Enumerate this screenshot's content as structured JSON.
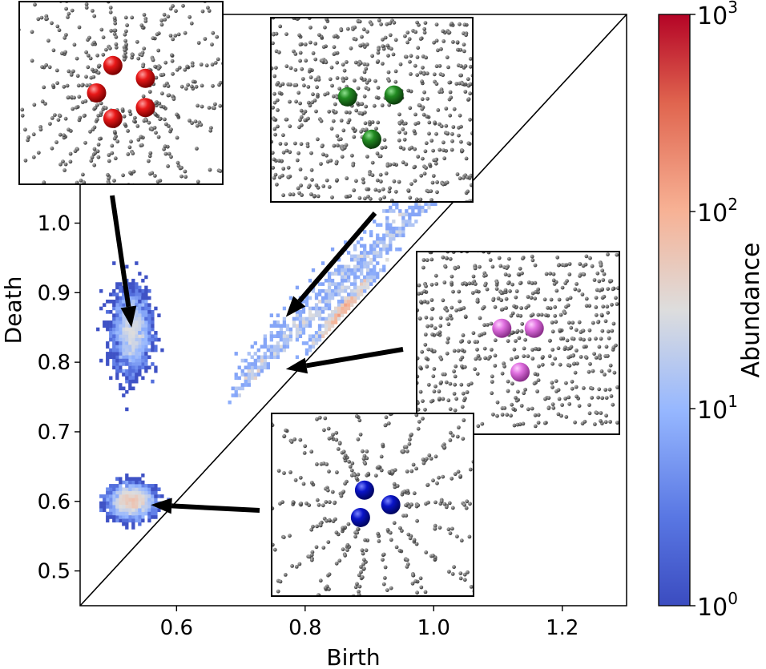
{
  "chart_data": {
    "type": "heatmap",
    "description_kind": "persistence diagram (2D histogram of birth/death pairs)",
    "xlabel": "Birth",
    "ylabel": "Death",
    "xlim": [
      0.45,
      1.3
    ],
    "ylim": [
      0.45,
      1.3
    ],
    "xticks": [
      0.6,
      0.8,
      1.0,
      1.2
    ],
    "xtick_labels": [
      "0.6",
      "0.8",
      "1.0",
      "1.2"
    ],
    "yticks": [
      0.5,
      0.6,
      0.7,
      0.8,
      0.9,
      1.0
    ],
    "ytick_labels": [
      "0.5",
      "0.6",
      "0.7",
      "0.8",
      "0.9",
      "1.0"
    ],
    "diagonal": true,
    "grid": false,
    "colorbar": {
      "label": "Abundance",
      "scale": "log",
      "range": [
        1,
        1000
      ],
      "ticks": [
        {
          "base": "10",
          "exp": "0",
          "value": 1
        },
        {
          "base": "10",
          "exp": "1",
          "value": 10
        },
        {
          "base": "10",
          "exp": "2",
          "value": 100
        },
        {
          "base": "10",
          "exp": "3",
          "value": 1000
        }
      ],
      "colormap": "coolwarm"
    },
    "clusters": [
      {
        "id": "A",
        "birth_center": 0.53,
        "death_center": 0.845,
        "birth_spread": 0.025,
        "death_spread": 0.05,
        "peak_abundance": 150
      },
      {
        "id": "B",
        "birth_center": 0.53,
        "death_center": 0.6,
        "birth_spread": 0.03,
        "death_spread": 0.02,
        "peak_abundance": 200
      },
      {
        "id": "C",
        "birth_center": 0.85,
        "death_center": 0.87,
        "birth_spread": 0.09,
        "death_spread": 0.06,
        "peak_abundance": 300
      }
    ],
    "insets": [
      {
        "id": "red",
        "sphere_color": "#e01010",
        "sphere_count": 5,
        "points_to": [
          0.53,
          0.85
        ]
      },
      {
        "id": "green",
        "sphere_color": "#1e8a1e",
        "sphere_count": 3,
        "points_to": [
          0.77,
          0.865
        ]
      },
      {
        "id": "pink",
        "sphere_color": "#e070e0",
        "sphere_count": 3,
        "points_to": [
          0.77,
          0.79
        ]
      },
      {
        "id": "blue",
        "sphere_color": "#0a14c8",
        "sphere_count": 3,
        "points_to": [
          0.56,
          0.595
        ]
      }
    ]
  }
}
